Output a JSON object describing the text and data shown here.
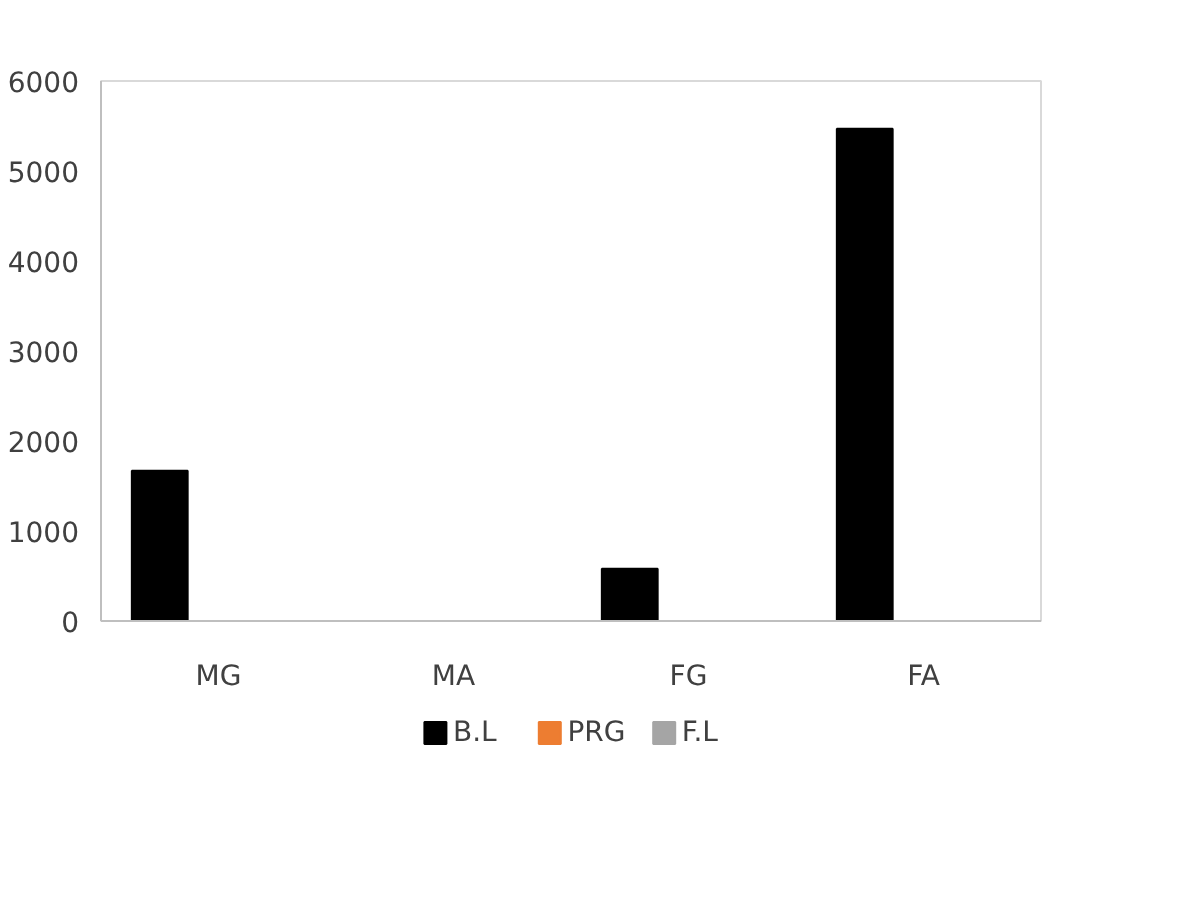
{
  "chart_data": {
    "type": "bar",
    "categories": [
      "MG",
      "MA",
      "FG",
      "FA"
    ],
    "series": [
      {
        "name": "B.L",
        "color": "#000000",
        "values": [
          1670,
          0,
          580,
          5470
        ]
      },
      {
        "name": "PRG",
        "color": "#ed7d31",
        "values": [
          0,
          0,
          0,
          0
        ]
      },
      {
        "name": "F.L",
        "color": "#a5a5a5",
        "values": [
          0,
          0,
          0,
          0
        ]
      }
    ],
    "ylim": [
      0,
      6000
    ],
    "yticks": [
      0,
      1000,
      2000,
      3000,
      4000,
      5000,
      6000
    ],
    "grid": false,
    "legend": "bottom"
  }
}
